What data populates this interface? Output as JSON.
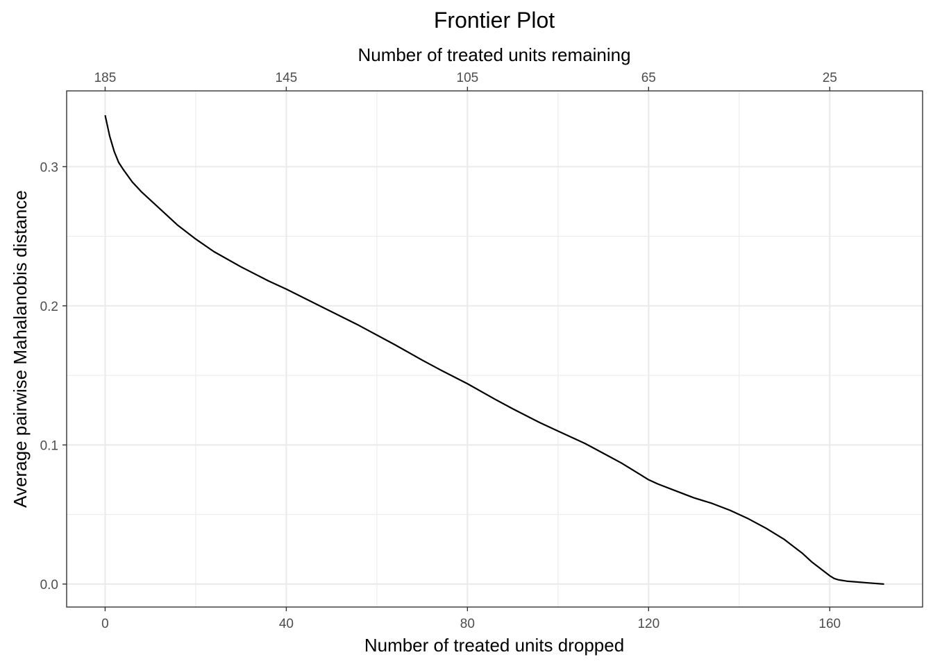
{
  "chart_data": {
    "type": "line",
    "title": "Frontier Plot",
    "xlabel": "Number of treated units dropped",
    "x2label": "Number of treated units remaining",
    "ylabel": "Average pairwise Mahalanobis distance",
    "xlim": [
      -8.5,
      180.5
    ],
    "ylim": [
      -0.0165,
      0.3545
    ],
    "x_ticks": [
      0,
      40,
      80,
      120,
      160
    ],
    "x_tick_labels": [
      "0",
      "40",
      "80",
      "120",
      "160"
    ],
    "x2_ticks": [
      0,
      40,
      80,
      120,
      160
    ],
    "x2_tick_labels": [
      "185",
      "145",
      "105",
      "65",
      "25"
    ],
    "x_minor_ticks": [
      20,
      60,
      100,
      140
    ],
    "y_ticks": [
      0.0,
      0.1,
      0.2,
      0.3
    ],
    "y_tick_labels": [
      "0.0",
      "0.1",
      "0.2",
      "0.3"
    ],
    "y_minor_ticks": [
      0.05,
      0.15,
      0.25
    ],
    "grid": true,
    "series": [
      {
        "color": "#000000",
        "x": [
          0,
          1,
          2,
          3,
          4,
          6,
          8,
          10,
          12,
          16,
          20,
          24,
          30,
          36,
          40,
          48,
          56,
          64,
          70,
          74,
          80,
          86,
          90,
          96,
          100,
          106,
          110,
          114,
          118,
          120,
          122,
          126,
          130,
          134,
          138,
          142,
          146,
          150,
          154,
          156,
          158,
          160,
          161,
          162,
          164,
          166,
          168,
          170,
          172
        ],
        "y": [
          0.337,
          0.322,
          0.311,
          0.303,
          0.298,
          0.289,
          0.282,
          0.276,
          0.27,
          0.258,
          0.248,
          0.239,
          0.228,
          0.218,
          0.212,
          0.199,
          0.186,
          0.172,
          0.161,
          0.154,
          0.144,
          0.133,
          0.126,
          0.116,
          0.11,
          0.101,
          0.094,
          0.087,
          0.079,
          0.075,
          0.072,
          0.067,
          0.062,
          0.058,
          0.053,
          0.047,
          0.04,
          0.032,
          0.022,
          0.016,
          0.011,
          0.006,
          0.004,
          0.003,
          0.002,
          0.0015,
          0.001,
          0.0005,
          0.0
        ]
      }
    ]
  }
}
